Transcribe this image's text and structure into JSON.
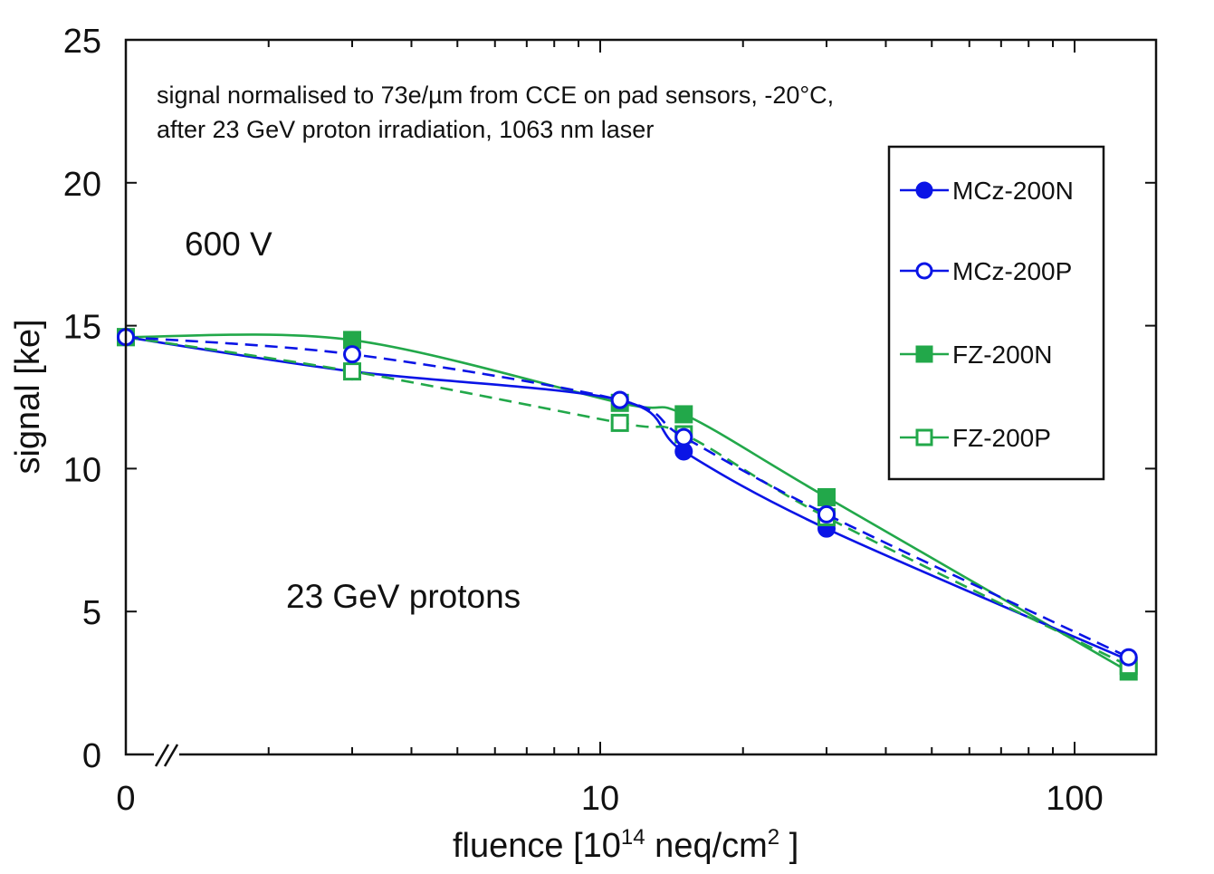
{
  "chart_data": {
    "type": "line",
    "xlabel_main": "fluence [10",
    "xlabel_sup1": "14",
    "xlabel_mid": " neq/cm",
    "xlabel_sup2": "2",
    "xlabel_end": " ]",
    "ylabel": "signal [ke]",
    "y_range": [
      0,
      25
    ],
    "y_ticks": [
      0,
      5,
      10,
      15,
      20,
      25
    ],
    "x_scale": "broken-log",
    "x_tick_labels": [
      "0",
      "10",
      "100"
    ],
    "x_log_range": [
      1,
      150
    ],
    "annotations": {
      "line1": "signal normalised to 73e/µm from CCE on pad sensors, -20°C,",
      "line2": "after 23 GeV proton irradiation, 1063 nm laser",
      "voltage": "600 V",
      "particles": "23 GeV protons"
    },
    "legend_position": "top-right",
    "series": [
      {
        "name": "MCz-200N",
        "color": "#0a14e6",
        "marker": "circle-filled",
        "line": "solid",
        "points": [
          [
            0,
            14.6
          ],
          [
            3,
            13.4
          ],
          [
            11,
            12.4
          ],
          [
            15,
            10.6
          ],
          [
            30,
            7.9
          ],
          [
            130,
            3.3
          ]
        ]
      },
      {
        "name": "MCz-200P",
        "color": "#0a14e6",
        "marker": "circle-open",
        "line": "dashed",
        "points": [
          [
            0,
            14.6
          ],
          [
            3,
            14.0
          ],
          [
            11,
            12.4
          ],
          [
            15,
            11.1
          ],
          [
            30,
            8.4
          ],
          [
            130,
            3.4
          ]
        ]
      },
      {
        "name": "FZ-200N",
        "color": "#22a84a",
        "marker": "square-filled",
        "line": "solid",
        "points": [
          [
            0,
            14.6
          ],
          [
            3,
            14.5
          ],
          [
            11,
            12.3
          ],
          [
            15,
            11.9
          ],
          [
            30,
            9.0
          ],
          [
            130,
            2.9
          ]
        ]
      },
      {
        "name": "FZ-200P",
        "color": "#22a84a",
        "marker": "square-open",
        "line": "dashed",
        "points": [
          [
            0,
            14.6
          ],
          [
            3,
            13.4
          ],
          [
            11,
            11.6
          ],
          [
            15,
            11.2
          ],
          [
            30,
            8.3
          ],
          [
            130,
            3.1
          ]
        ]
      }
    ]
  }
}
